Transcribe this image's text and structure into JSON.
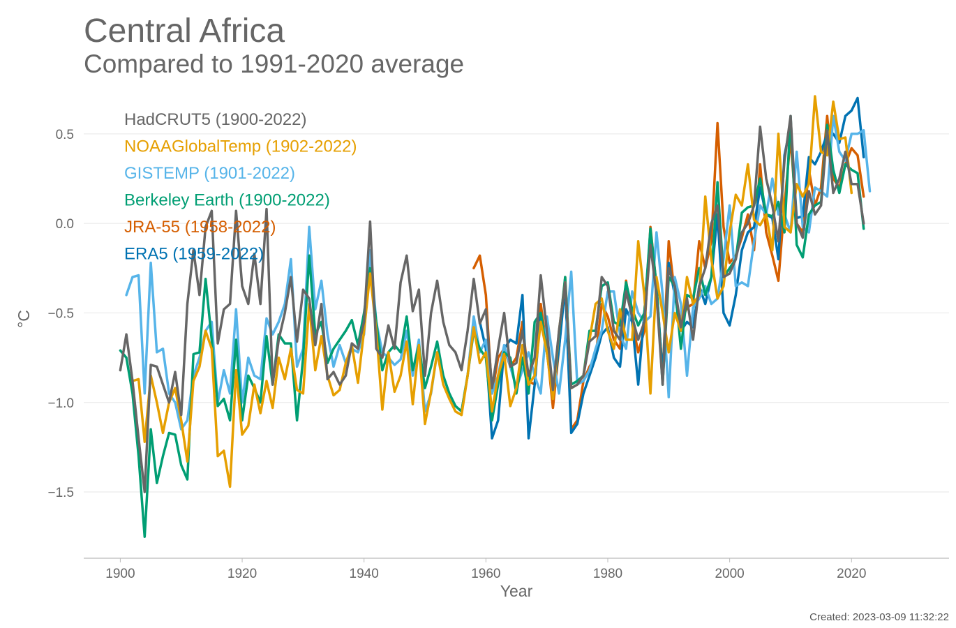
{
  "chart_data": {
    "type": "line",
    "title": "Central Africa",
    "subtitle": "Compared to 1991-2020 average",
    "xlabel": "Year",
    "ylabel": "°C",
    "xlim": [
      1894,
      2036
    ],
    "ylim": [
      -1.87,
      0.78
    ],
    "x_ticks": [
      1900,
      1920,
      1940,
      1960,
      1980,
      2000,
      2020
    ],
    "x_tick_labels": [
      "1900",
      "1920",
      "1940",
      "1960",
      "1980",
      "2000",
      "2020"
    ],
    "y_ticks": [
      -1.5,
      -1.0,
      -0.5,
      0.0,
      0.5
    ],
    "y_tick_labels": [
      "−1.5",
      "−1.0",
      "−0.5",
      "0.0",
      "0.5"
    ],
    "grid": true,
    "legend_position": "top-left",
    "created": "Created: 2023-03-09 11:32:22",
    "series": [
      {
        "name": "JRA-55 (1958-2022)",
        "color": "#D55E00",
        "start": 1958,
        "values": [
          -0.25,
          -0.18,
          -0.4,
          -0.95,
          -0.75,
          -0.7,
          -0.8,
          -0.75,
          -0.55,
          -0.88,
          -0.9,
          -0.45,
          -0.7,
          -1.03,
          -0.7,
          -0.3,
          -1.15,
          -1.1,
          -0.88,
          -0.8,
          -0.75,
          -0.45,
          -0.52,
          -0.65,
          -0.7,
          -0.32,
          -0.55,
          -0.72,
          -0.6,
          -0.02,
          -0.35,
          -0.85,
          -0.1,
          -0.4,
          -0.55,
          -0.47,
          -0.45,
          -0.1,
          -0.25,
          -0.1,
          0.56,
          -0.02,
          -0.22,
          -0.18,
          -0.08,
          0.05,
          -0.15,
          0.33,
          -0.05,
          -0.18,
          -0.32,
          0.1,
          0.48,
          0.0,
          -0.05,
          0.3,
          0.1,
          0.2,
          0.6,
          0.25,
          0.2,
          0.33,
          0.42,
          0.38,
          0.15
        ]
      },
      {
        "name": "ERA5 (1959-2022)",
        "color": "#0072B2",
        "start": 1959,
        "values": [
          -0.55,
          -0.7,
          -1.2,
          -1.1,
          -0.7,
          -0.65,
          -0.67,
          -0.4,
          -1.2,
          -0.9,
          -0.5,
          -0.72,
          -0.95,
          -0.7,
          -0.35,
          -1.17,
          -1.12,
          -0.95,
          -0.85,
          -0.75,
          -0.62,
          -0.58,
          -0.75,
          -0.8,
          -0.48,
          -0.55,
          -0.9,
          -0.5,
          -0.05,
          -0.35,
          -0.85,
          -0.22,
          -0.4,
          -0.6,
          -0.55,
          -0.58,
          -0.35,
          -0.45,
          -0.3,
          0.05,
          -0.5,
          -0.57,
          -0.4,
          -0.15,
          -0.05,
          -0.02,
          0.2,
          0.05,
          0.03,
          -0.2,
          0.38,
          0.55,
          0.03,
          0.04,
          0.37,
          0.33,
          0.4,
          0.5,
          0.5,
          0.45,
          0.6,
          0.63,
          0.7,
          0.37
        ]
      },
      {
        "name": "GISTEMP (1901-2022)",
        "color": "#56B4E9",
        "start": 1901,
        "values": [
          -0.4,
          -0.3,
          -0.29,
          -0.95,
          -0.22,
          -0.72,
          -0.7,
          -0.95,
          -1.0,
          -1.15,
          -1.1,
          -0.85,
          -0.75,
          -0.6,
          -0.55,
          -1.0,
          -0.82,
          -0.95,
          -0.48,
          -1.0,
          -0.75,
          -0.85,
          -0.87,
          -0.53,
          -0.62,
          -0.55,
          -0.45,
          -0.2,
          -0.8,
          -0.7,
          -0.02,
          -0.48,
          -0.32,
          -0.62,
          -0.8,
          -0.68,
          -0.78,
          -0.7,
          -0.72,
          -0.62,
          -0.15,
          -0.55,
          -0.72,
          -0.75,
          -0.79,
          -0.76,
          -0.6,
          -0.85,
          -0.65,
          -1.05,
          -0.95,
          -0.72,
          -0.85,
          -0.95,
          -1.02,
          -1.05,
          -0.85,
          -0.52,
          -0.72,
          -0.65,
          -0.95,
          -0.85,
          -0.68,
          -0.8,
          -0.92,
          -0.82,
          -0.72,
          -0.85,
          -0.95,
          -0.52,
          -0.75,
          -0.95,
          -0.65,
          -0.27,
          -0.9,
          -0.88,
          -0.82,
          -0.7,
          -0.6,
          -0.38,
          -0.38,
          -0.62,
          -0.7,
          -0.38,
          -0.5,
          -0.55,
          -0.52,
          -0.05,
          -0.4,
          -0.97,
          -0.3,
          -0.45,
          -0.85,
          -0.47,
          -0.42,
          -0.35,
          -0.45,
          -0.42,
          -0.2,
          0.1,
          -0.35,
          -0.33,
          -0.35,
          -0.1,
          0.1,
          0.05,
          0.25,
          0.05,
          0.05,
          -0.05,
          0.4,
          -0.02,
          -0.05,
          0.2,
          0.18,
          0.15,
          0.6,
          0.4,
          0.35,
          0.5,
          0.5,
          0.52,
          0.18
        ]
      },
      {
        "name": "Berkeley Earth (1900-2022)",
        "color": "#009E73",
        "start": 1900,
        "values": [
          -0.71,
          -0.75,
          -0.95,
          -1.3,
          -1.75,
          -1.15,
          -1.45,
          -1.3,
          -1.17,
          -1.18,
          -1.35,
          -1.43,
          -0.73,
          -0.72,
          -0.31,
          -0.65,
          -1.02,
          -0.98,
          -1.1,
          -0.65,
          -1.1,
          -0.85,
          -0.92,
          -1.0,
          -0.63,
          -0.9,
          -0.62,
          -0.67,
          -0.67,
          -1.1,
          -0.75,
          -0.18,
          -0.62,
          -0.55,
          -0.78,
          -0.7,
          -0.65,
          -0.6,
          -0.54,
          -0.68,
          -0.5,
          -0.25,
          -0.55,
          -0.82,
          -0.72,
          -0.68,
          -0.72,
          -0.52,
          -0.82,
          -0.68,
          -0.92,
          -0.8,
          -0.66,
          -0.85,
          -0.95,
          -1.02,
          -1.05,
          -0.85,
          -0.6,
          -0.7,
          -0.75,
          -1.1,
          -0.9,
          -0.72,
          -0.75,
          -0.95,
          -0.75,
          -0.95,
          -0.55,
          -0.5,
          -0.72,
          -0.95,
          -0.62,
          -0.3,
          -0.9,
          -0.88,
          -0.85,
          -0.6,
          -0.6,
          -0.35,
          -0.33,
          -0.55,
          -0.57,
          -0.33,
          -0.48,
          -0.57,
          -0.5,
          -0.03,
          -0.35,
          -0.9,
          -0.3,
          -0.35,
          -0.7,
          -0.4,
          -0.42,
          -0.25,
          -0.4,
          -0.3,
          0.23,
          -0.3,
          -0.25,
          -0.2,
          0.06,
          0.09,
          0.1,
          0.25,
          0.05,
          0.04,
          0.12,
          -0.05,
          0.6,
          -0.12,
          -0.19,
          0.05,
          0.1,
          0.12,
          0.55,
          0.3,
          0.17,
          0.33,
          0.3,
          0.28,
          -0.03
        ]
      },
      {
        "name": "NOAAGlobalTemp (1902-2022)",
        "color": "#E69F00",
        "start": 1902,
        "values": [
          -0.88,
          -0.87,
          -1.22,
          -0.85,
          -1.0,
          -1.17,
          -1.0,
          -0.92,
          -1.1,
          -1.33,
          -0.88,
          -0.8,
          -0.6,
          -0.7,
          -1.3,
          -1.27,
          -1.47,
          -0.82,
          -1.18,
          -1.13,
          -0.9,
          -1.06,
          -0.88,
          -1.03,
          -0.75,
          -0.87,
          -0.7,
          -0.93,
          -0.95,
          -0.45,
          -0.82,
          -0.63,
          -0.85,
          -0.96,
          -0.93,
          -0.78,
          -0.68,
          -0.89,
          -0.6,
          -0.28,
          -0.6,
          -1.04,
          -0.72,
          -0.94,
          -0.85,
          -0.66,
          -1.01,
          -0.68,
          -1.12,
          -0.94,
          -0.72,
          -0.9,
          -0.98,
          -1.05,
          -1.07,
          -0.85,
          -0.58,
          -0.78,
          -0.72,
          -1.05,
          -0.85,
          -0.73,
          -1.02,
          -0.92,
          -0.68,
          -0.9,
          -0.85,
          -0.55,
          -0.72,
          -0.98,
          -0.6,
          -0.33,
          -0.92,
          -0.9,
          -0.85,
          -0.65,
          -0.45,
          -0.42,
          -0.6,
          -0.7,
          -0.48,
          -0.65,
          -0.65,
          -0.1,
          -0.4,
          -0.95,
          -0.3,
          -0.5,
          -0.72,
          -0.5,
          -0.6,
          -0.3,
          -0.45,
          -0.4,
          0.15,
          -0.2,
          -0.42,
          -0.35,
          -0.05,
          0.16,
          0.1,
          0.33,
          0.02,
          -0.01,
          0.05,
          -0.15,
          0.5,
          -0.02,
          -0.05,
          0.22,
          0.15,
          0.22,
          0.71,
          0.4,
          0.38,
          0.68,
          0.47,
          0.48,
          0.17
        ]
      },
      {
        "name": "HadCRUT5 (1900-2022)",
        "color": "#666666",
        "start": 1900,
        "values": [
          -0.82,
          -0.62,
          -0.88,
          -1.2,
          -1.5,
          -0.79,
          -0.8,
          -0.9,
          -1.0,
          -0.83,
          -1.07,
          -0.45,
          -0.15,
          -0.4,
          -0.02,
          0.07,
          -0.67,
          -0.48,
          -0.45,
          0.07,
          -0.35,
          -0.45,
          -0.17,
          -0.45,
          0.08,
          -0.9,
          -0.65,
          -0.5,
          -0.3,
          -0.66,
          -0.37,
          -0.42,
          -0.68,
          -0.45,
          -0.87,
          -0.83,
          -0.9,
          -0.85,
          -0.67,
          -0.7,
          -0.55,
          0.01,
          -0.7,
          -0.75,
          -0.57,
          -0.7,
          -0.33,
          -0.18,
          -0.49,
          -0.37,
          -0.85,
          -0.5,
          -0.32,
          -0.55,
          -0.68,
          -0.72,
          -0.82,
          -0.6,
          -0.31,
          -0.56,
          -0.48,
          -0.92,
          -0.7,
          -0.5,
          -0.8,
          -0.78,
          -0.6,
          -0.85,
          -0.75,
          -0.29,
          -0.6,
          -0.93,
          -0.6,
          -0.33,
          -0.92,
          -0.9,
          -0.85,
          -0.66,
          -0.63,
          -0.3,
          -0.35,
          -0.6,
          -0.65,
          -0.38,
          -0.52,
          -0.65,
          -0.55,
          -0.12,
          -0.4,
          -0.9,
          -0.25,
          -0.35,
          -0.58,
          -0.42,
          -0.65,
          -0.35,
          -0.25,
          0.0,
          0.1,
          -0.3,
          -0.28,
          -0.2,
          -0.05,
          0.0,
          0.1,
          0.54,
          0.25,
          0.1,
          -0.1,
          0.35,
          0.6,
          0.0,
          -0.08,
          0.18,
          0.05,
          0.1,
          0.52,
          0.17,
          0.25,
          0.4,
          0.22,
          0.22,
          0.0
        ]
      }
    ]
  }
}
